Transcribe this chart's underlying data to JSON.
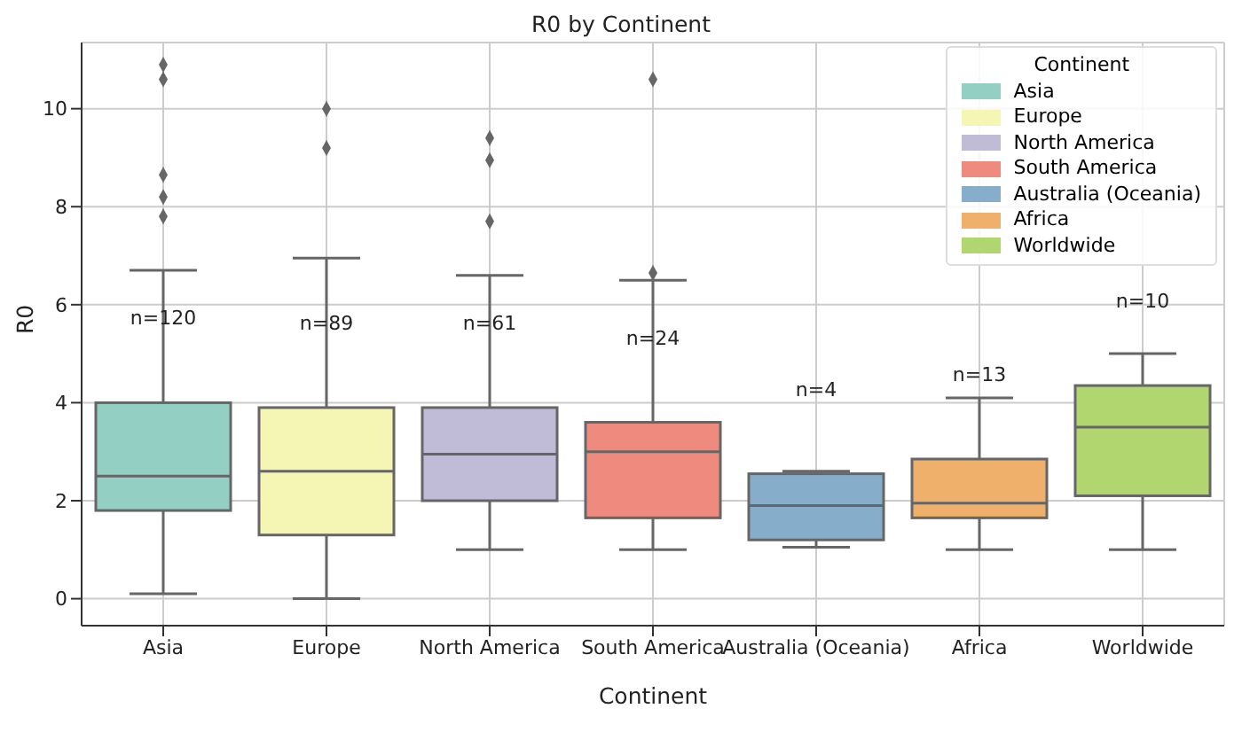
{
  "chart_data": {
    "type": "box",
    "title": "R0 by Continent",
    "xlabel": "Continent",
    "ylabel": "R0",
    "legend_title": "Continent",
    "legend": "top right",
    "grid": true,
    "marker": "diamond",
    "categories": [
      "Asia",
      "Europe",
      "North America",
      "South America",
      "Australia (Oceania)",
      "Africa",
      "Worldwide"
    ],
    "ylim": [
      -0.55,
      11.35
    ],
    "yticks": [
      0,
      2,
      4,
      6,
      8,
      10
    ],
    "series": [
      {
        "name": "Asia",
        "color": "#93cfc3",
        "boxes": [
          {
            "low": 0.1,
            "q1": 1.8,
            "median": 2.5,
            "q3": 4.0,
            "high": 6.7,
            "outliers": [
              10.9,
              10.6,
              8.65,
              8.2,
              7.8
            ]
          },
          null,
          null,
          null,
          null,
          null,
          null
        ]
      },
      {
        "name": "Europe",
        "color": "#f6f6b4",
        "boxes": [
          null,
          {
            "low": 0,
            "q1": 1.3,
            "median": 2.6,
            "q3": 3.9,
            "high": 6.95,
            "outliers": [
              10.0,
              9.2
            ]
          },
          null,
          null,
          null,
          null,
          null
        ]
      },
      {
        "name": "North America",
        "color": "#c0bcd8",
        "boxes": [
          null,
          null,
          {
            "low": 1.0,
            "q1": 2.0,
            "median": 2.95,
            "q3": 3.9,
            "high": 6.6,
            "outliers": [
              9.4,
              8.95,
              7.7
            ]
          },
          null,
          null,
          null,
          null
        ]
      },
      {
        "name": "South America",
        "color": "#ee8a7e",
        "boxes": [
          null,
          null,
          null,
          {
            "low": 1.0,
            "q1": 1.65,
            "median": 3.0,
            "q3": 3.6,
            "high": 6.5,
            "outliers": [
              10.6,
              6.65
            ]
          },
          null,
          null,
          null
        ]
      },
      {
        "name": "Australia (Oceania)",
        "color": "#86adc9",
        "boxes": [
          null,
          null,
          null,
          null,
          {
            "low": 1.05,
            "q1": 1.2,
            "median": 1.9,
            "q3": 2.55,
            "high": 2.6
          },
          null,
          null
        ]
      },
      {
        "name": "Africa",
        "color": "#eeb06a",
        "boxes": [
          null,
          null,
          null,
          null,
          null,
          {
            "low": 1.0,
            "q1": 1.65,
            "median": 1.95,
            "q3": 2.85,
            "high": 4.1
          },
          null
        ]
      },
      {
        "name": "Worldwide",
        "color": "#b1d56f",
        "boxes": [
          null,
          null,
          null,
          null,
          null,
          null,
          {
            "low": 1.0,
            "q1": 2.1,
            "median": 3.5,
            "q3": 4.35,
            "high": 5.0
          }
        ]
      }
    ],
    "annotations": [
      "n=120",
      "n=89",
      "n=61",
      "n=24",
      "n=4",
      "n=13",
      "n=10"
    ]
  }
}
